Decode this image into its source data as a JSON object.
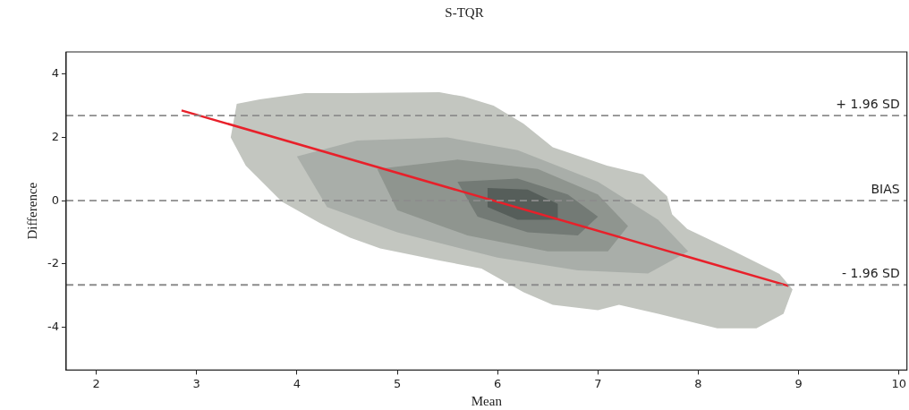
{
  "chart_data": {
    "type": "line",
    "title": "S-TQR",
    "xlabel": "Mean",
    "ylabel": "Difference",
    "xlim": [
      1.7,
      10.08
    ],
    "ylim": [
      -5.35,
      4.7
    ],
    "xticks": [
      2,
      3,
      4,
      5,
      6,
      7,
      8,
      9,
      10
    ],
    "yticks": [
      -4,
      -2,
      0,
      2,
      4
    ],
    "grid": false,
    "legend": false,
    "series": [
      {
        "type": "area",
        "color": "#c3c6c0",
        "x": [
          3.4,
          3.34,
          3.49,
          3.85,
          4.23,
          4.53,
          4.83,
          5.42,
          5.84,
          6.26,
          6.55,
          7.0,
          7.21,
          7.6,
          8.19,
          8.58,
          8.85,
          8.94,
          8.81,
          8.34,
          7.89,
          7.74,
          7.69,
          7.45,
          7.09,
          6.55,
          6.26,
          5.96,
          5.66,
          5.42,
          4.53,
          4.08,
          3.63
        ],
        "values": [
          3.06,
          2.0,
          1.11,
          -0.03,
          -0.71,
          -1.17,
          -1.51,
          -1.89,
          -2.14,
          -2.89,
          -3.29,
          -3.46,
          -3.29,
          -3.57,
          -4.03,
          -4.03,
          -3.57,
          -2.8,
          -2.31,
          -1.57,
          -0.89,
          -0.43,
          0.14,
          0.83,
          1.11,
          1.69,
          2.43,
          3.0,
          3.29,
          3.43,
          3.4,
          3.4,
          3.2
        ]
      },
      {
        "type": "area",
        "color": "#a9aea9",
        "x": [
          4.0,
          4.6,
          5.5,
          6.2,
          7.0,
          7.6,
          7.9,
          7.5,
          6.8,
          6.0,
          5.0,
          4.3
        ],
        "values": [
          1.4,
          1.9,
          2.0,
          1.6,
          0.6,
          -0.6,
          -1.6,
          -2.3,
          -2.2,
          -1.8,
          -1.0,
          -0.2
        ]
      },
      {
        "type": "area",
        "color": "#8f958f",
        "x": [
          4.8,
          5.6,
          6.4,
          7.0,
          7.3,
          7.1,
          6.5,
          5.7,
          5.0
        ],
        "values": [
          1.0,
          1.3,
          1.0,
          0.2,
          -0.8,
          -1.6,
          -1.6,
          -1.1,
          -0.3
        ]
      },
      {
        "type": "area",
        "color": "#737a75",
        "x": [
          5.6,
          6.2,
          6.7,
          7.0,
          6.8,
          6.3,
          5.8
        ],
        "values": [
          0.6,
          0.7,
          0.2,
          -0.5,
          -1.1,
          -1.0,
          -0.5
        ]
      },
      {
        "type": "area",
        "color": "#565e5a",
        "x": [
          5.9,
          6.3,
          6.6,
          6.6,
          6.2,
          5.9
        ],
        "values": [
          0.4,
          0.35,
          -0.1,
          -0.6,
          -0.6,
          -0.2
        ]
      },
      {
        "color": "#e8202a",
        "x": [
          2.85,
          8.9
        ],
        "values": [
          2.85,
          -2.69
        ]
      }
    ],
    "ref_lines": [
      {
        "axis": "y",
        "value": 2.69,
        "label": "+ 1.96 SD",
        "color": "#8c8c8c",
        "line_style": "dashed"
      },
      {
        "axis": "y",
        "value": 0,
        "label": "BIAS",
        "color": "#8c8c8c",
        "line_style": "dashed"
      },
      {
        "axis": "y",
        "value": -2.66,
        "label": "- 1.96 SD",
        "color": "#8c8c8c",
        "line_style": "dashed"
      }
    ]
  }
}
